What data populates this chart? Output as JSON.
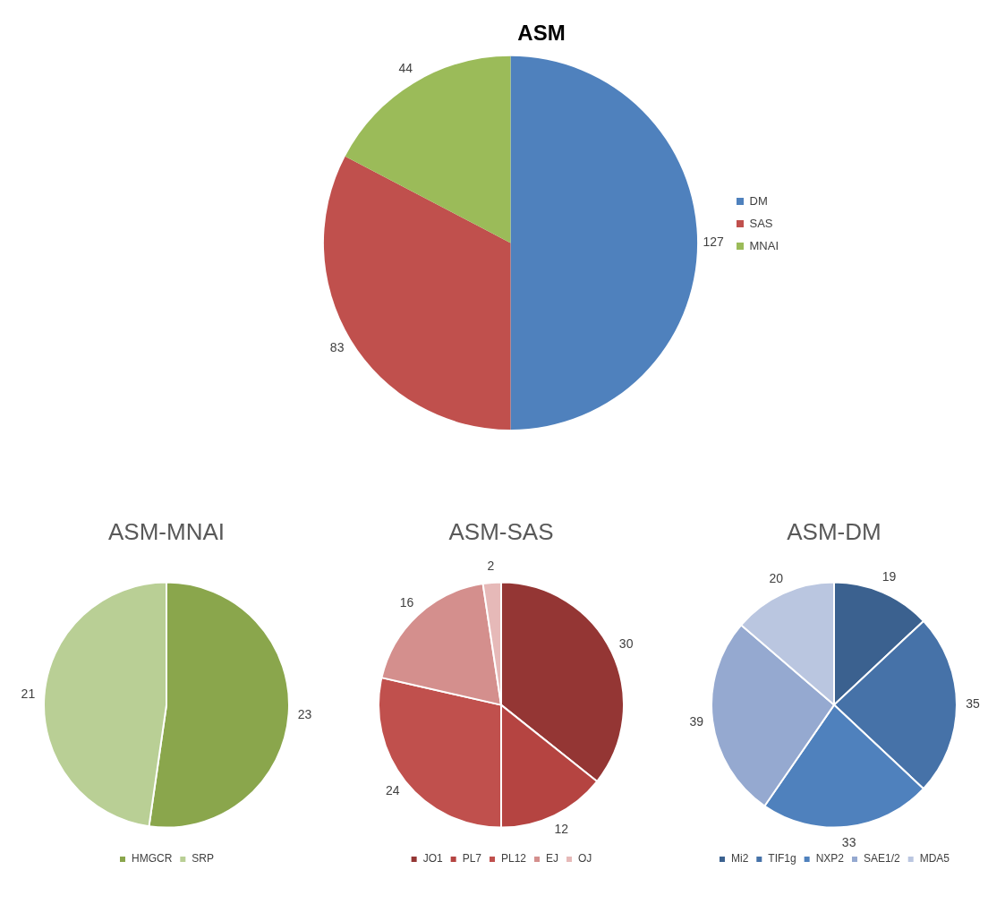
{
  "chart_data": [
    {
      "type": "pie",
      "title": "ASM",
      "categories": [
        "DM",
        "SAS",
        "MNAI"
      ],
      "values": [
        127,
        83,
        44
      ],
      "colors": [
        "#4f81bd",
        "#c0504d",
        "#9bbb59"
      ],
      "legend": "right",
      "data_labels": true
    },
    {
      "type": "pie",
      "title": "ASM-MNAI",
      "categories": [
        "HMGCR",
        "SRP"
      ],
      "values": [
        23,
        21
      ],
      "colors": [
        "#8aa64c",
        "#b9cf95"
      ],
      "legend": "bottom",
      "data_labels": true
    },
    {
      "type": "pie",
      "title": "ASM-SAS",
      "categories": [
        "JO1",
        "PL7",
        "PL12",
        "EJ",
        "OJ"
      ],
      "values": [
        30,
        12,
        24,
        16,
        2
      ],
      "colors": [
        "#943634",
        "#b54441",
        "#c0504d",
        "#d48f8d",
        "#e6b9b8"
      ],
      "legend": "bottom",
      "data_labels": true
    },
    {
      "type": "pie",
      "title": "ASM-DM",
      "categories": [
        "Mi2",
        "TIF1g",
        "NXP2",
        "SAE1/2",
        "MDA5"
      ],
      "values": [
        19,
        35,
        33,
        39,
        20
      ],
      "colors": [
        "#3b618f",
        "#4672a8",
        "#4f81bd",
        "#95a9d0",
        "#bac6e0"
      ],
      "legend": "bottom",
      "data_labels": true
    }
  ]
}
